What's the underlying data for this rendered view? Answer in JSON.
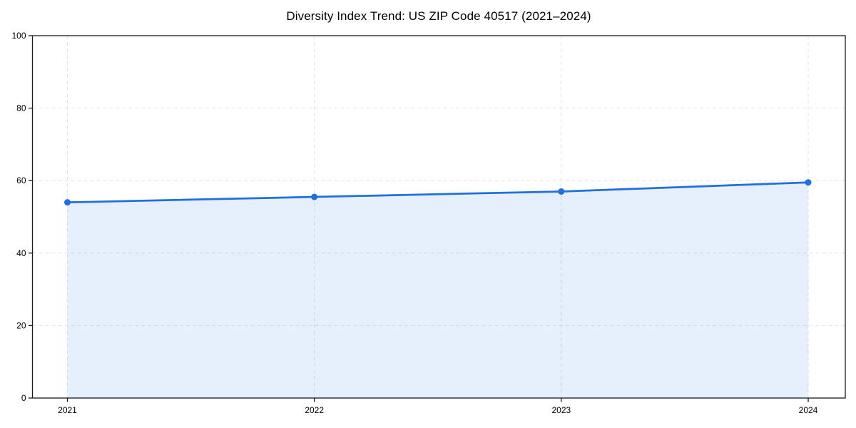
{
  "chart_data": {
    "type": "line",
    "area_fill": true,
    "title": "Diversity Index Trend: US ZIP Code 40517 (2021–2024)",
    "categories": [
      "2021",
      "2022",
      "2023",
      "2024"
    ],
    "values": [
      54,
      55.5,
      57,
      59.5
    ],
    "xlabel": "",
    "ylabel": "",
    "ylim": [
      0,
      100
    ],
    "yticks": [
      0,
      20,
      40,
      60,
      80,
      100
    ],
    "grid": "dashed",
    "legend_position": "none",
    "colors": {
      "line": "#1f6fe0",
      "marker": "#1f6fe0",
      "area_fill": "#1f6fe0",
      "grid": "#e3e3e3",
      "axis": "#1a1a1a",
      "text": "#000000",
      "background": "#ffffff"
    }
  }
}
